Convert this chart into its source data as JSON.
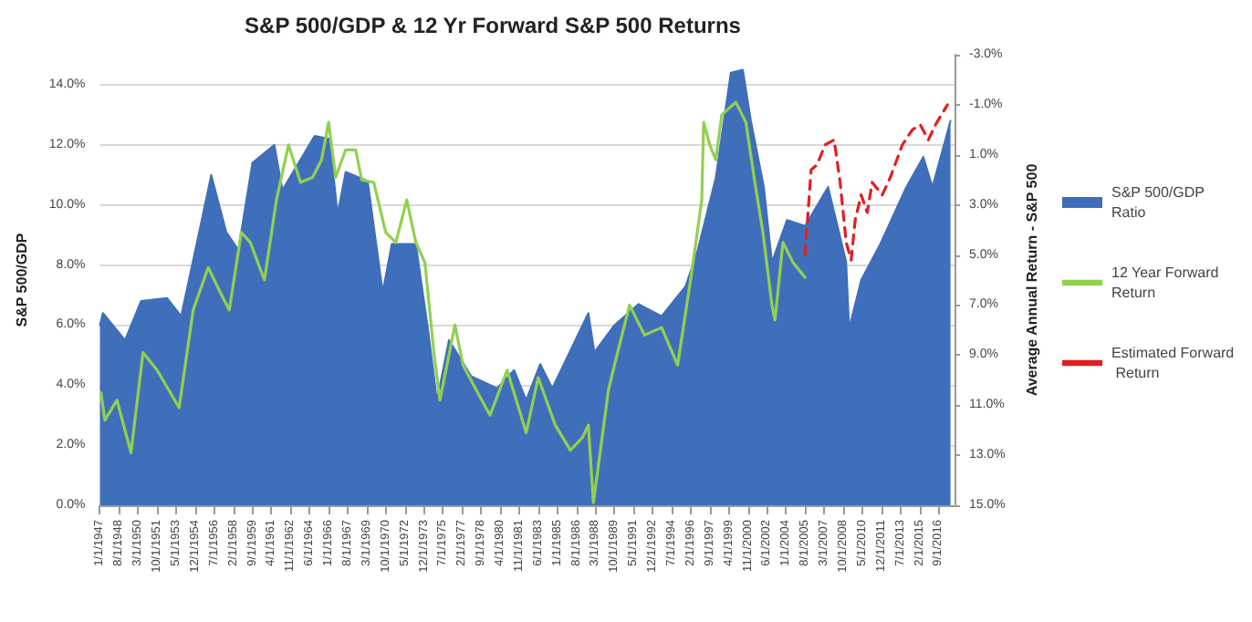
{
  "chart_data": {
    "type": "area",
    "title": "S&P 500/GDP & 12 Yr Forward S&P 500 Returns",
    "ylabel": "S&P 500/GDP",
    "y2label": "Average Annual Return - S&P 500",
    "xlim": [
      "1947-01",
      "2018-01"
    ],
    "xticks": [
      {
        "value": "1947-01-01",
        "label": "1/1/1947"
      },
      {
        "value": "1948-08-01",
        "label": "8/1/1948"
      },
      {
        "value": "1950-03-01",
        "label": "3/1/1950"
      },
      {
        "value": "1951-10-01",
        "label": "10/1/1951"
      },
      {
        "value": "1953-05-01",
        "label": "5/1/1953"
      },
      {
        "value": "1954-12-01",
        "label": "12/1/1954"
      },
      {
        "value": "1956-07-01",
        "label": "7/1/1956"
      },
      {
        "value": "1958-02-01",
        "label": "2/1/1958"
      },
      {
        "value": "1959-09-01",
        "label": "9/1/1959"
      },
      {
        "value": "1961-04-01",
        "label": "4/1/1961"
      },
      {
        "value": "1962-11-01",
        "label": "11/1/1962"
      },
      {
        "value": "1964-06-01",
        "label": "6/1/1964"
      },
      {
        "value": "1966-01-01",
        "label": "1/1/1966"
      },
      {
        "value": "1967-08-01",
        "label": "8/1/1967"
      },
      {
        "value": "1969-03-01",
        "label": "3/1/1969"
      },
      {
        "value": "1970-10-01",
        "label": "10/1/1970"
      },
      {
        "value": "1972-05-01",
        "label": "5/1/1972"
      },
      {
        "value": "1973-12-01",
        "label": "12/1/1973"
      },
      {
        "value": "1975-07-01",
        "label": "7/1/1975"
      },
      {
        "value": "1977-02-01",
        "label": "2/1/1977"
      },
      {
        "value": "1978-09-01",
        "label": "9/1/1978"
      },
      {
        "value": "1980-04-01",
        "label": "4/1/1980"
      },
      {
        "value": "1981-11-01",
        "label": "11/1/1981"
      },
      {
        "value": "1983-06-01",
        "label": "6/1/1983"
      },
      {
        "value": "1985-01-01",
        "label": "1/1/1985"
      },
      {
        "value": "1986-08-01",
        "label": "8/1/1986"
      },
      {
        "value": "1988-03-01",
        "label": "3/1/1988"
      },
      {
        "value": "1989-10-01",
        "label": "10/1/1989"
      },
      {
        "value": "1991-05-01",
        "label": "5/1/1991"
      },
      {
        "value": "1992-12-01",
        "label": "12/1/1992"
      },
      {
        "value": "1994-07-01",
        "label": "7/1/1994"
      },
      {
        "value": "1996-02-01",
        "label": "2/1/1996"
      },
      {
        "value": "1997-09-01",
        "label": "9/1/1997"
      },
      {
        "value": "1999-04-01",
        "label": "4/1/1999"
      },
      {
        "value": "2000-11-01",
        "label": "11/1/2000"
      },
      {
        "value": "2002-06-01",
        "label": "6/1/2002"
      },
      {
        "value": "2004-01-01",
        "label": "1/1/2004"
      },
      {
        "value": "2005-08-01",
        "label": "8/1/2005"
      },
      {
        "value": "2007-03-01",
        "label": "3/1/2007"
      },
      {
        "value": "2008-10-01",
        "label": "10/1/2008"
      },
      {
        "value": "2010-05-01",
        "label": "5/1/2010"
      },
      {
        "value": "2011-12-01",
        "label": "12/1/2011"
      },
      {
        "value": "2013-07-01",
        "label": "7/1/2013"
      },
      {
        "value": "2015-02-01",
        "label": "2/1/2015"
      },
      {
        "value": "2016-09-01",
        "label": "9/1/2016"
      }
    ],
    "ylim": [
      0,
      15
    ],
    "yticks": [
      {
        "value": 0,
        "label": "0.0%"
      },
      {
        "value": 2,
        "label": "2.0%"
      },
      {
        "value": 4,
        "label": "4.0%"
      },
      {
        "value": 6,
        "label": "6.0%"
      },
      {
        "value": 8,
        "label": "8.0%"
      },
      {
        "value": 10,
        "label": "10.0%"
      },
      {
        "value": 12,
        "label": "12.0%"
      },
      {
        "value": 14,
        "label": "14.0%"
      }
    ],
    "y2lim": [
      15,
      -3
    ],
    "y2ticks": [
      {
        "value": -3,
        "label": "-3.0%"
      },
      {
        "value": -1,
        "label": "-1.0%"
      },
      {
        "value": 1,
        "label": "1.0%"
      },
      {
        "value": 3,
        "label": "3.0%"
      },
      {
        "value": 5,
        "label": "5.0%"
      },
      {
        "value": 7,
        "label": "7.0%"
      },
      {
        "value": 9,
        "label": "9.0%"
      },
      {
        "value": 11,
        "label": "11.0%"
      },
      {
        "value": 13,
        "label": "13.0%"
      },
      {
        "value": 15,
        "label": "15.0%"
      }
    ],
    "grid": "y",
    "legend": "right",
    "marker": "none",
    "series": [
      {
        "name": "S&P 500/GDP Ratio",
        "color": "#3f6fba",
        "x": [
          "1947-01",
          "1947-04",
          "1949-02",
          "1950-06",
          "1952-08",
          "1953-10",
          "1955-04",
          "1956-04",
          "1957-07",
          "1958-07",
          "1959-09",
          "1961-07",
          "1962-03",
          "1964-11",
          "1966-02",
          "1966-10",
          "1967-06",
          "1969-04",
          "1970-07",
          "1971-04",
          "1973-04",
          "1974-04",
          "1975-01",
          "1976-01",
          "1977-11",
          "1980-01",
          "1981-06",
          "1982-06",
          "1983-08",
          "1984-08",
          "1987-08",
          "1988-02",
          "1989-10",
          "1991-10",
          "1993-09",
          "1995-09",
          "1996-09",
          "1998-03",
          "1999-06",
          "2000-06",
          "2001-02",
          "2002-03",
          "2002-11",
          "2004-02",
          "2005-08",
          "2007-07",
          "2009-01",
          "2009-04",
          "2010-04",
          "2011-11",
          "2014-01",
          "2015-06",
          "2016-03",
          "2017-09"
        ],
        "values": [
          6.0,
          6.4,
          5.5,
          6.8,
          6.9,
          6.3,
          9.1,
          11.0,
          9.1,
          8.5,
          11.4,
          12.0,
          10.5,
          12.3,
          12.2,
          9.7,
          11.1,
          10.8,
          7.1,
          8.7,
          8.7,
          5.9,
          3.5,
          5.5,
          4.3,
          3.9,
          4.5,
          3.5,
          4.7,
          3.9,
          6.4,
          5.1,
          6.0,
          6.7,
          6.3,
          7.3,
          8.5,
          10.9,
          14.4,
          14.5,
          12.8,
          10.6,
          8.1,
          9.5,
          9.3,
          10.6,
          8.1,
          5.9,
          7.5,
          8.7,
          10.6,
          11.6,
          10.6,
          12.8
        ]
      },
      {
        "name": "12 Year Forward Return",
        "type": "line",
        "axis": "y2",
        "color": "#92d050",
        "line_style": "solid",
        "x": [
          "1947-02",
          "1947-06",
          "1948-06",
          "1949-08",
          "1950-08",
          "1951-10",
          "1953-08",
          "1954-10",
          "1956-01",
          "1957-01",
          "1957-10",
          "1958-10",
          "1959-07",
          "1960-09",
          "1961-09",
          "1962-09",
          "1963-09",
          "1964-09",
          "1965-06",
          "1966-01",
          "1966-08",
          "1967-06",
          "1968-04",
          "1968-10",
          "1969-10",
          "1970-10",
          "1971-08",
          "1972-07",
          "1973-04",
          "1974-01",
          "1974-10",
          "1975-04",
          "1976-07",
          "1977-03",
          "1978-07",
          "1979-06",
          "1980-11",
          "1982-06",
          "1983-06",
          "1984-11",
          "1986-02",
          "1987-02",
          "1987-08",
          "1988-01",
          "1989-04",
          "1989-10",
          "1991-01",
          "1992-04",
          "1993-09",
          "1995-01",
          "1996-03",
          "1997-01",
          "1997-03",
          "1997-09",
          "1998-03",
          "1998-09",
          "1999-11",
          "2000-09",
          "2001-06",
          "2002-02",
          "2002-11",
          "2003-02",
          "2003-10",
          "2004-08",
          "2005-08"
        ],
        "values": [
          10.5,
          11.6,
          10.8,
          12.9,
          8.9,
          9.6,
          11.1,
          7.2,
          5.5,
          6.5,
          7.2,
          4.1,
          4.5,
          6.0,
          2.8,
          0.6,
          2.1,
          1.9,
          1.2,
          -0.3,
          1.9,
          0.8,
          0.8,
          2.0,
          2.1,
          4.1,
          4.5,
          2.8,
          4.5,
          5.3,
          8.9,
          10.8,
          7.8,
          9.4,
          10.6,
          11.4,
          9.6,
          12.1,
          9.9,
          11.8,
          12.8,
          12.3,
          11.8,
          14.9,
          10.4,
          9.4,
          7.0,
          8.2,
          7.9,
          9.4,
          5.7,
          2.8,
          -0.3,
          0.6,
          1.2,
          -0.6,
          -1.1,
          -0.3,
          2.1,
          4.1,
          7.0,
          7.6,
          4.5,
          5.3,
          5.9
        ]
      },
      {
        "name": "Estimated Forward Return",
        "type": "line",
        "axis": "y2",
        "color": "#e02020",
        "line_style": "dashed",
        "x": [
          "2005-08",
          "2006-02",
          "2006-08",
          "2007-04",
          "2008-01",
          "2008-07",
          "2009-01",
          "2009-06",
          "2009-10",
          "2010-04",
          "2010-10",
          "2011-03",
          "2012-01",
          "2012-09",
          "2013-09",
          "2014-07",
          "2015-03",
          "2015-11",
          "2016-06",
          "2017-06"
        ],
        "values": [
          5.0,
          1.6,
          1.4,
          0.6,
          0.4,
          2.1,
          4.5,
          5.2,
          3.6,
          2.6,
          3.3,
          2.1,
          2.6,
          1.9,
          0.6,
          0.0,
          -0.2,
          0.4,
          -0.2,
          -1.0
        ]
      }
    ]
  }
}
